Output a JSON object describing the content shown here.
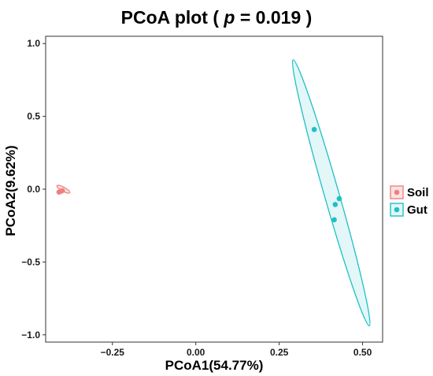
{
  "chart_data": {
    "type": "scatter",
    "title": {
      "prefix": "PCoA plot ( ",
      "stat_symbol": "p",
      "equals_value": " = 0.019",
      "suffix": " )"
    },
    "xlabel": "PCoA1(54.77%)",
    "ylabel": "PCoA2(9.62%)",
    "xlim": [
      -0.45,
      0.56
    ],
    "ylim": [
      -1.05,
      1.05
    ],
    "x_ticks": [
      -0.25,
      0.0,
      0.25,
      0.5
    ],
    "x_tick_labels": [
      "−0.25",
      "0.00",
      "0.25",
      "0.50"
    ],
    "y_ticks": [
      -1.0,
      -0.5,
      0.0,
      0.5,
      1.0
    ],
    "y_tick_labels": [
      "−1.0",
      "−0.5",
      "0.0",
      "0.5",
      "1.0"
    ],
    "grid": false,
    "legend_position": "right",
    "series": [
      {
        "name": "Soil",
        "color": "#f08080",
        "fill": "#fbe3e3",
        "points": [
          {
            "x": -0.41,
            "y": -0.02
          },
          {
            "x": -0.405,
            "y": -0.015
          },
          {
            "x": -0.4,
            "y": -0.01
          }
        ],
        "ellipse": {
          "cx": -0.397,
          "cy": 0.0,
          "rx": 0.006,
          "ry": 0.05,
          "angle_deg": 61
        }
      },
      {
        "name": "Gut",
        "color": "#1fc0c4",
        "fill": "#e3f6f8",
        "points": [
          {
            "x": 0.355,
            "y": 0.41
          },
          {
            "x": 0.43,
            "y": -0.065
          },
          {
            "x": 0.418,
            "y": -0.105
          },
          {
            "x": 0.415,
            "y": -0.21
          }
        ],
        "ellipse": {
          "cx": 0.406,
          "cy": -0.025,
          "rx": 0.022,
          "ry": 0.95,
          "angle_deg": 16
        }
      }
    ]
  }
}
